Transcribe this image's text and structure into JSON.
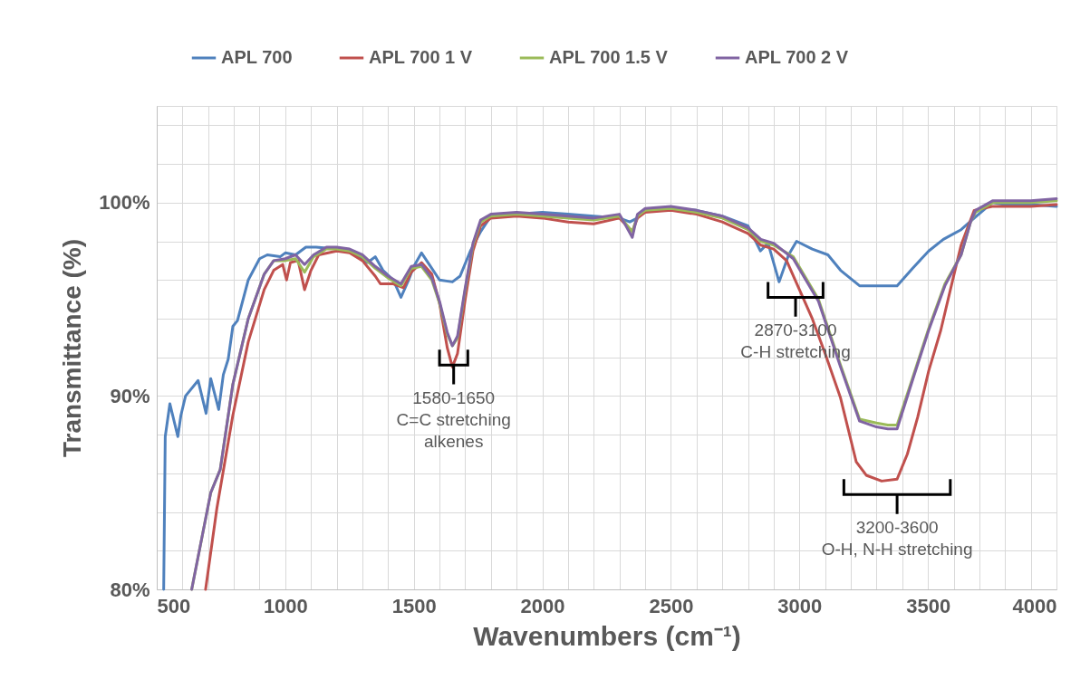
{
  "chart_data": {
    "type": "line",
    "xlabel": "Wavenumbers (cm⁻¹)",
    "ylabel": "Transmittance (%)",
    "xlim": [
      500,
      4000
    ],
    "xticks": [
      500,
      {
        "value": 600,
        "label": null
      },
      {
        "value": 700,
        "label": null
      },
      {
        "value": 800,
        "label": null
      },
      {
        "value": 900,
        "label": null
      },
      1000,
      {
        "value": 1100,
        "label": null
      },
      {
        "value": 1200,
        "label": null
      },
      {
        "value": 1300,
        "label": null
      },
      {
        "value": 1400,
        "label": null
      },
      1500,
      {
        "value": 1600,
        "label": null
      },
      {
        "value": 1700,
        "label": null
      },
      {
        "value": 1800,
        "label": null
      },
      {
        "value": 1900,
        "label": null
      },
      2000,
      {
        "value": 2100,
        "label": null
      },
      {
        "value": 2200,
        "label": null
      },
      {
        "value": 2300,
        "label": null
      },
      {
        "value": 2400,
        "label": null
      },
      2500,
      {
        "value": 2600,
        "label": null
      },
      {
        "value": 2700,
        "label": null
      },
      {
        "value": 2800,
        "label": null
      },
      {
        "value": 2900,
        "label": null
      },
      3000,
      {
        "value": 3100,
        "label": null
      },
      {
        "value": 3200,
        "label": null
      },
      {
        "value": 3300,
        "label": null
      },
      {
        "value": 3400,
        "label": null
      },
      3500,
      {
        "value": 3600,
        "label": null
      },
      {
        "value": 3700,
        "label": null
      },
      {
        "value": 3800,
        "label": null
      },
      {
        "value": 3900,
        "label": null
      },
      4000
    ],
    "ylim": [
      80,
      105
    ],
    "yticks": [
      {
        "value": 80,
        "label": "80%"
      },
      {
        "value": 82,
        "label": null
      },
      {
        "value": 84,
        "label": null
      },
      {
        "value": 86,
        "label": null
      },
      {
        "value": 88,
        "label": null
      },
      {
        "value": 90,
        "label": "90%"
      },
      {
        "value": 92,
        "label": null
      },
      {
        "value": 94,
        "label": null
      },
      {
        "value": 96,
        "label": null
      },
      {
        "value": 98,
        "label": null
      },
      {
        "value": 100,
        "label": "100%"
      },
      {
        "value": 102,
        "label": null
      },
      {
        "value": 104,
        "label": null
      }
    ],
    "grid": true,
    "legend": "top",
    "marker": "none",
    "line_style": "solid",
    "series": [
      {
        "name": "APL 700",
        "color": "#4f81bd",
        "x": [
          527,
          533,
          551,
          582,
          594,
          612,
          661,
          692,
          710,
          741,
          759,
          778,
          796,
          814,
          856,
          900,
          930,
          980,
          1000,
          1040,
          1080,
          1120,
          1200,
          1250,
          1300,
          1320,
          1350,
          1380,
          1420,
          1450,
          1480,
          1500,
          1530,
          1560,
          1600,
          1650,
          1680,
          1720,
          1760,
          1800,
          1900,
          2000,
          2100,
          2200,
          2300,
          2340,
          2370,
          2400,
          2500,
          2600,
          2700,
          2800,
          2848,
          2878,
          2921,
          2958,
          2989,
          3050,
          3111,
          3160,
          3234,
          3300,
          3344,
          3380,
          3440,
          3503,
          3560,
          3629,
          3680,
          3750,
          3800,
          3900,
          4000
        ],
        "values": [
          80,
          87.9,
          89.6,
          87.9,
          89.0,
          90.0,
          90.8,
          89.1,
          90.9,
          89.3,
          91.1,
          91.9,
          93.6,
          93.9,
          96.0,
          97.1,
          97.3,
          97.2,
          97.4,
          97.3,
          97.7,
          97.7,
          97.6,
          97.5,
          97.1,
          96.9,
          97.2,
          96.5,
          96.0,
          95.1,
          96.0,
          96.7,
          97.4,
          96.8,
          96.0,
          95.9,
          96.2,
          97.5,
          98.5,
          99.3,
          99.4,
          99.5,
          99.4,
          99.3,
          99.2,
          99.0,
          99.2,
          99.6,
          99.7,
          99.6,
          99.3,
          98.8,
          97.5,
          97.9,
          95.9,
          97.3,
          98.0,
          97.6,
          97.3,
          96.5,
          95.7,
          95.7,
          95.7,
          95.7,
          96.6,
          97.5,
          98.1,
          98.6,
          99.2,
          100.0,
          99.9,
          99.9,
          99.8
        ]
      },
      {
        "name": "APL 700 1 V",
        "color": "#c0504d",
        "x": [
          690,
          734,
          796,
          856,
          918,
          955,
          990,
          1005,
          1020,
          1050,
          1075,
          1100,
          1130,
          1200,
          1250,
          1300,
          1350,
          1370,
          1420,
          1460,
          1490,
          1530,
          1570,
          1600,
          1630,
          1650,
          1670,
          1700,
          1730,
          1760,
          1800,
          1900,
          2000,
          2100,
          2200,
          2300,
          2350,
          2370,
          2400,
          2500,
          2600,
          2700,
          2800,
          2850,
          2900,
          2950,
          3000,
          3050,
          3100,
          3160,
          3221,
          3260,
          3320,
          3380,
          3420,
          3460,
          3503,
          3550,
          3600,
          3629,
          3680,
          3750,
          3800,
          3900,
          4000
        ],
        "values": [
          80,
          84.2,
          89.0,
          92.8,
          95.5,
          96.5,
          96.8,
          96.0,
          96.9,
          97.0,
          95.5,
          96.5,
          97.3,
          97.5,
          97.4,
          97.0,
          96.2,
          95.8,
          95.8,
          95.6,
          96.4,
          96.9,
          96.3,
          94.8,
          92.5,
          91.5,
          92.2,
          95.0,
          97.5,
          98.8,
          99.2,
          99.3,
          99.2,
          99.0,
          98.9,
          99.2,
          98.5,
          99.2,
          99.5,
          99.6,
          99.4,
          99.0,
          98.4,
          97.8,
          97.6,
          97.0,
          95.5,
          94.0,
          92.2,
          89.9,
          86.6,
          85.9,
          85.6,
          85.7,
          87.0,
          88.9,
          91.3,
          93.4,
          96.2,
          97.8,
          99.6,
          99.8,
          99.8,
          99.8,
          99.9
        ]
      },
      {
        "name": "APL 700 1.5 V",
        "color": "#9bbb59",
        "x": [
          636,
          710,
          747,
          796,
          856,
          918,
          955,
          1000,
          1040,
          1075,
          1110,
          1160,
          1200,
          1250,
          1300,
          1350,
          1400,
          1450,
          1490,
          1530,
          1570,
          1600,
          1630,
          1650,
          1670,
          1700,
          1730,
          1760,
          1800,
          1900,
          2000,
          2100,
          2200,
          2300,
          2350,
          2370,
          2400,
          2500,
          2600,
          2700,
          2800,
          2850,
          2900,
          2976,
          3074,
          3160,
          3234,
          3300,
          3344,
          3380,
          3442,
          3503,
          3566,
          3629,
          3666,
          3685,
          3753,
          3800,
          3900,
          4000
        ],
        "values": [
          80,
          85.0,
          86.2,
          90.6,
          94.0,
          96.3,
          97.0,
          97.0,
          97.1,
          96.4,
          97.2,
          97.6,
          97.6,
          97.5,
          97.2,
          96.6,
          96.1,
          95.7,
          96.6,
          96.7,
          96.0,
          94.8,
          93.2,
          92.6,
          93.0,
          95.5,
          97.8,
          99.0,
          99.3,
          99.4,
          99.3,
          99.2,
          99.1,
          99.3,
          98.5,
          99.3,
          99.6,
          99.7,
          99.5,
          99.2,
          98.6,
          98.0,
          97.8,
          97.2,
          95.0,
          91.6,
          88.8,
          88.6,
          88.5,
          88.5,
          91.0,
          93.5,
          95.8,
          97.3,
          99.0,
          99.5,
          100.0,
          100.0,
          100.0,
          100.1
        ]
      },
      {
        "name": "APL 700 2 V",
        "color": "#8064a2",
        "x": [
          636,
          710,
          747,
          796,
          856,
          918,
          955,
          1000,
          1040,
          1075,
          1110,
          1160,
          1200,
          1250,
          1300,
          1350,
          1400,
          1450,
          1490,
          1530,
          1570,
          1600,
          1630,
          1650,
          1670,
          1700,
          1730,
          1760,
          1800,
          1900,
          2000,
          2100,
          2200,
          2300,
          2350,
          2370,
          2400,
          2500,
          2600,
          2700,
          2800,
          2850,
          2900,
          2976,
          3074,
          3160,
          3234,
          3300,
          3344,
          3380,
          3442,
          3503,
          3566,
          3629,
          3666,
          3685,
          3753,
          3800,
          3900,
          4000
        ],
        "values": [
          80,
          85.0,
          86.2,
          90.6,
          94.0,
          96.3,
          97.0,
          97.1,
          97.3,
          96.8,
          97.3,
          97.7,
          97.7,
          97.6,
          97.3,
          96.7,
          96.2,
          95.8,
          96.7,
          96.8,
          96.1,
          94.9,
          93.3,
          92.6,
          93.1,
          95.6,
          97.9,
          99.1,
          99.4,
          99.5,
          99.4,
          99.3,
          99.2,
          99.4,
          98.2,
          99.4,
          99.7,
          99.8,
          99.6,
          99.3,
          98.7,
          98.1,
          97.9,
          97.1,
          94.9,
          91.5,
          88.7,
          88.4,
          88.3,
          88.3,
          90.9,
          93.4,
          95.7,
          97.3,
          99.0,
          99.6,
          100.1,
          100.1,
          100.1,
          100.2
        ]
      }
    ],
    "annotations": [
      {
        "text": "1580-1650\nC=C stretching\nalkenes",
        "x": 1655,
        "y": 92.4
      },
      {
        "text": "2870-3100\nC-H stretching",
        "x": 2985,
        "y": 95.9
      },
      {
        "text": "3200-3600\nO-H, N-H stretching",
        "x": 3380,
        "y": 85.7
      }
    ]
  }
}
